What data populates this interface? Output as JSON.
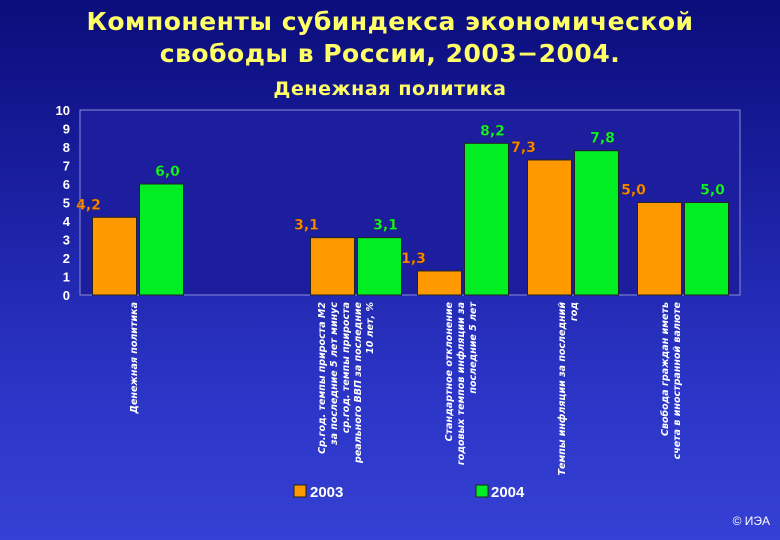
{
  "header": {
    "title_line1": "Компоненты субиндекса экономической",
    "title_line2": "свободы в России, 2003−2004.",
    "subtitle": "Денежная политика"
  },
  "footer": {
    "copyright": "© ИЭА"
  },
  "colors": {
    "series_2003": "#ff9900",
    "series_2004": "#00ee22",
    "label_2003": "#ff8800",
    "label_2004": "#00ff33"
  },
  "chart_data": {
    "type": "bar",
    "ylim": [
      0,
      10
    ],
    "yticks": [
      "0",
      "1",
      "2",
      "3",
      "4",
      "5",
      "6",
      "7",
      "8",
      "9",
      "10"
    ],
    "categories": [
      "Денежная политика",
      "Ср.год. темпы прироста М2 за последние 5 лет минус ср.год. темпы прироста реального ВВП за последние 10 лет, %",
      "Стандартное отклонение годовых темпов инфляции за последние 5 лет",
      "Темпы инфляции за последний год",
      "Свобода граждан иметь счета в иностранной валюте"
    ],
    "category_lines": [
      [
        "Денежная политика"
      ],
      [
        "Ср.год. темпы прироста М2",
        "за последние 5 лет минус",
        "ср.год. темпы прироста",
        "реального ВВП за последние",
        "10 лет, %"
      ],
      [
        "Стандартное отклонение",
        "годовых темпов инфляции за",
        "последние 5 лет"
      ],
      [
        "Темпы инфляции за последний",
        "год"
      ],
      [
        "Свобода граждан иметь",
        "счета в иностранной валюте"
      ]
    ],
    "series": [
      {
        "name": "2003",
        "values": [
          4.2,
          3.1,
          1.3,
          7.3,
          5.0
        ],
        "labels": [
          "4,2",
          "3,1",
          "1,3",
          "7,3",
          "5,0"
        ]
      },
      {
        "name": "2004",
        "values": [
          6.0,
          3.1,
          8.2,
          7.8,
          5.0
        ],
        "labels": [
          "6,0",
          "3,1",
          "8,2",
          "7,8",
          "5,0"
        ]
      }
    ],
    "legend": {
      "position": "bottom",
      "labels": [
        "2003",
        "2004"
      ]
    },
    "grid": false
  }
}
